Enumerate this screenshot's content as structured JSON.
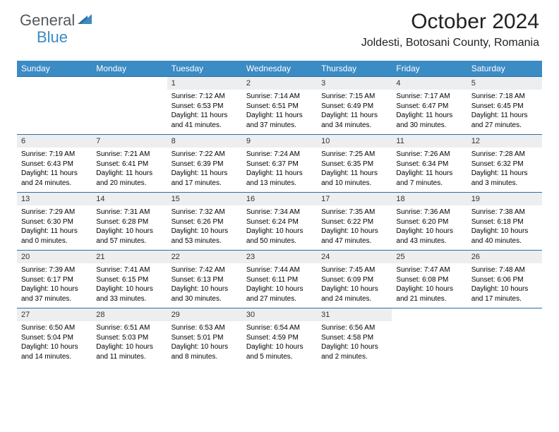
{
  "logo": {
    "word1": "General",
    "word2": "Blue",
    "color1": "#555a5f",
    "color2": "#3b8bc4"
  },
  "title": "October 2024",
  "location": "Joldesti, Botosani County, Romania",
  "colors": {
    "header_bg": "#3b8bc4",
    "header_text": "#ffffff",
    "daynum_bg": "#eceeef",
    "border_top": "#2e6ea0",
    "page_bg": "#ffffff"
  },
  "fonts": {
    "title_size": 30,
    "location_size": 16,
    "header_size": 12,
    "daynum_size": 11,
    "content_size": 10
  },
  "day_headers": [
    "Sunday",
    "Monday",
    "Tuesday",
    "Wednesday",
    "Thursday",
    "Friday",
    "Saturday"
  ],
  "weeks": [
    [
      null,
      null,
      {
        "n": "1",
        "sunrise": "7:12 AM",
        "sunset": "6:53 PM",
        "daylight": "11 hours and 41 minutes."
      },
      {
        "n": "2",
        "sunrise": "7:14 AM",
        "sunset": "6:51 PM",
        "daylight": "11 hours and 37 minutes."
      },
      {
        "n": "3",
        "sunrise": "7:15 AM",
        "sunset": "6:49 PM",
        "daylight": "11 hours and 34 minutes."
      },
      {
        "n": "4",
        "sunrise": "7:17 AM",
        "sunset": "6:47 PM",
        "daylight": "11 hours and 30 minutes."
      },
      {
        "n": "5",
        "sunrise": "7:18 AM",
        "sunset": "6:45 PM",
        "daylight": "11 hours and 27 minutes."
      }
    ],
    [
      {
        "n": "6",
        "sunrise": "7:19 AM",
        "sunset": "6:43 PM",
        "daylight": "11 hours and 24 minutes."
      },
      {
        "n": "7",
        "sunrise": "7:21 AM",
        "sunset": "6:41 PM",
        "daylight": "11 hours and 20 minutes."
      },
      {
        "n": "8",
        "sunrise": "7:22 AM",
        "sunset": "6:39 PM",
        "daylight": "11 hours and 17 minutes."
      },
      {
        "n": "9",
        "sunrise": "7:24 AM",
        "sunset": "6:37 PM",
        "daylight": "11 hours and 13 minutes."
      },
      {
        "n": "10",
        "sunrise": "7:25 AM",
        "sunset": "6:35 PM",
        "daylight": "11 hours and 10 minutes."
      },
      {
        "n": "11",
        "sunrise": "7:26 AM",
        "sunset": "6:34 PM",
        "daylight": "11 hours and 7 minutes."
      },
      {
        "n": "12",
        "sunrise": "7:28 AM",
        "sunset": "6:32 PM",
        "daylight": "11 hours and 3 minutes."
      }
    ],
    [
      {
        "n": "13",
        "sunrise": "7:29 AM",
        "sunset": "6:30 PM",
        "daylight": "11 hours and 0 minutes."
      },
      {
        "n": "14",
        "sunrise": "7:31 AM",
        "sunset": "6:28 PM",
        "daylight": "10 hours and 57 minutes."
      },
      {
        "n": "15",
        "sunrise": "7:32 AM",
        "sunset": "6:26 PM",
        "daylight": "10 hours and 53 minutes."
      },
      {
        "n": "16",
        "sunrise": "7:34 AM",
        "sunset": "6:24 PM",
        "daylight": "10 hours and 50 minutes."
      },
      {
        "n": "17",
        "sunrise": "7:35 AM",
        "sunset": "6:22 PM",
        "daylight": "10 hours and 47 minutes."
      },
      {
        "n": "18",
        "sunrise": "7:36 AM",
        "sunset": "6:20 PM",
        "daylight": "10 hours and 43 minutes."
      },
      {
        "n": "19",
        "sunrise": "7:38 AM",
        "sunset": "6:18 PM",
        "daylight": "10 hours and 40 minutes."
      }
    ],
    [
      {
        "n": "20",
        "sunrise": "7:39 AM",
        "sunset": "6:17 PM",
        "daylight": "10 hours and 37 minutes."
      },
      {
        "n": "21",
        "sunrise": "7:41 AM",
        "sunset": "6:15 PM",
        "daylight": "10 hours and 33 minutes."
      },
      {
        "n": "22",
        "sunrise": "7:42 AM",
        "sunset": "6:13 PM",
        "daylight": "10 hours and 30 minutes."
      },
      {
        "n": "23",
        "sunrise": "7:44 AM",
        "sunset": "6:11 PM",
        "daylight": "10 hours and 27 minutes."
      },
      {
        "n": "24",
        "sunrise": "7:45 AM",
        "sunset": "6:09 PM",
        "daylight": "10 hours and 24 minutes."
      },
      {
        "n": "25",
        "sunrise": "7:47 AM",
        "sunset": "6:08 PM",
        "daylight": "10 hours and 21 minutes."
      },
      {
        "n": "26",
        "sunrise": "7:48 AM",
        "sunset": "6:06 PM",
        "daylight": "10 hours and 17 minutes."
      }
    ],
    [
      {
        "n": "27",
        "sunrise": "6:50 AM",
        "sunset": "5:04 PM",
        "daylight": "10 hours and 14 minutes."
      },
      {
        "n": "28",
        "sunrise": "6:51 AM",
        "sunset": "5:03 PM",
        "daylight": "10 hours and 11 minutes."
      },
      {
        "n": "29",
        "sunrise": "6:53 AM",
        "sunset": "5:01 PM",
        "daylight": "10 hours and 8 minutes."
      },
      {
        "n": "30",
        "sunrise": "6:54 AM",
        "sunset": "4:59 PM",
        "daylight": "10 hours and 5 minutes."
      },
      {
        "n": "31",
        "sunrise": "6:56 AM",
        "sunset": "4:58 PM",
        "daylight": "10 hours and 2 minutes."
      },
      null,
      null
    ]
  ],
  "labels": {
    "sunrise": "Sunrise:",
    "sunset": "Sunset:",
    "daylight": "Daylight:"
  }
}
